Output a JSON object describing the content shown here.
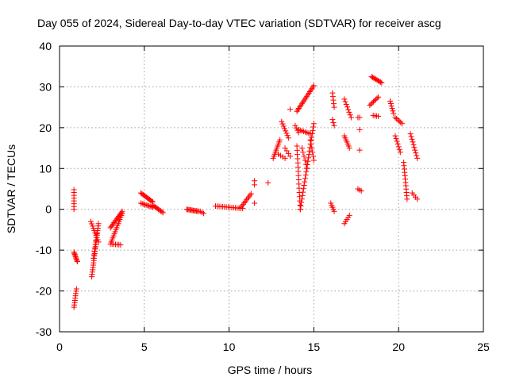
{
  "chart_data": {
    "type": "scatter",
    "title": "Day 055 of 2024, Sidereal Day-to-day VTEC variation (SDTVAR) for receiver ascg",
    "xlabel": "GPS time / hours",
    "ylabel": "SDTVAR / TECUs",
    "xlim": [
      0,
      25
    ],
    "ylim": [
      -30,
      40
    ],
    "xticks": [
      0,
      5,
      10,
      15,
      20,
      25
    ],
    "yticks": [
      -30,
      -20,
      -10,
      0,
      10,
      20,
      30,
      40
    ],
    "xtick_labels": [
      "0",
      "5",
      "10",
      "15",
      "20",
      "25"
    ],
    "ytick_labels": [
      "-30",
      "-20",
      "-10",
      "0",
      "10",
      "20",
      "30",
      "40"
    ],
    "grid": true,
    "marker": "+",
    "color": "#ff0000",
    "segments": [
      {
        "x0": 0.85,
        "y0": 4.8,
        "x1": 0.85,
        "y1": 0.0,
        "n": 8
      },
      {
        "x0": 0.85,
        "y0": -10.5,
        "x1": 1.05,
        "y1": -12.8,
        "n": 9
      },
      {
        "x0": 0.85,
        "y0": -24.0,
        "x1": 1.0,
        "y1": -19.5,
        "n": 9
      },
      {
        "x0": 1.9,
        "y0": -16.5,
        "x1": 2.3,
        "y1": -3.5,
        "n": 24
      },
      {
        "x0": 1.85,
        "y0": -3.0,
        "x1": 2.3,
        "y1": -8.0,
        "n": 10
      },
      {
        "x0": 2.0,
        "y0": -12.0,
        "x1": 2.2,
        "y1": -6.0,
        "n": 8
      },
      {
        "x0": 3.0,
        "y0": -4.5,
        "x1": 3.7,
        "y1": -0.5,
        "n": 14
      },
      {
        "x0": 3.0,
        "y0": -8.5,
        "x1": 3.7,
        "y1": -1.0,
        "n": 16
      },
      {
        "x0": 3.1,
        "y0": -8.5,
        "x1": 3.6,
        "y1": -8.7,
        "n": 6
      },
      {
        "x0": 4.8,
        "y0": 4.0,
        "x1": 5.5,
        "y1": 1.8,
        "n": 12
      },
      {
        "x0": 4.8,
        "y0": 1.5,
        "x1": 5.5,
        "y1": 0.5,
        "n": 10
      },
      {
        "x0": 5.5,
        "y0": 1.0,
        "x1": 6.1,
        "y1": -0.8,
        "n": 10
      },
      {
        "x0": 7.5,
        "y0": 0.0,
        "x1": 8.2,
        "y1": -0.5,
        "n": 12
      },
      {
        "x0": 8.3,
        "y0": -0.5,
        "x1": 8.5,
        "y1": -1.0,
        "n": 3
      },
      {
        "x0": 9.2,
        "y0": 0.8,
        "x1": 10.8,
        "y1": 0.2,
        "n": 16
      },
      {
        "x0": 10.7,
        "y0": 0.5,
        "x1": 11.3,
        "y1": 3.8,
        "n": 10
      },
      {
        "x0": 11.5,
        "y0": 6.0,
        "x1": 11.5,
        "y1": 7.0,
        "n": 2
      },
      {
        "x0": 11.5,
        "y0": 1.5,
        "x1": 11.5,
        "y1": 1.5,
        "n": 1
      },
      {
        "x0": 12.3,
        "y0": 6.5,
        "x1": 12.3,
        "y1": 6.5,
        "n": 1
      },
      {
        "x0": 12.6,
        "y0": 12.5,
        "x1": 13.0,
        "y1": 17.0,
        "n": 10
      },
      {
        "x0": 12.9,
        "y0": 13.5,
        "x1": 13.3,
        "y1": 12.5,
        "n": 4
      },
      {
        "x0": 13.1,
        "y0": 21.5,
        "x1": 13.5,
        "y1": 17.5,
        "n": 8
      },
      {
        "x0": 13.3,
        "y0": 15.0,
        "x1": 13.6,
        "y1": 13.0,
        "n": 4
      },
      {
        "x0": 13.6,
        "y0": 24.5,
        "x1": 13.6,
        "y1": 24.5,
        "n": 1
      },
      {
        "x0": 13.9,
        "y0": 20.5,
        "x1": 14.1,
        "y1": 18.8,
        "n": 4
      },
      {
        "x0": 14.0,
        "y0": 24.0,
        "x1": 15.0,
        "y1": 30.3,
        "n": 18
      },
      {
        "x0": 14.0,
        "y0": 15.5,
        "x1": 14.2,
        "y1": 0.0,
        "n": 16
      },
      {
        "x0": 14.2,
        "y0": 0.0,
        "x1": 15.0,
        "y1": 21.0,
        "n": 26
      },
      {
        "x0": 14.1,
        "y0": 19.5,
        "x1": 14.8,
        "y1": 18.5,
        "n": 8
      },
      {
        "x0": 14.3,
        "y0": 15.0,
        "x1": 14.6,
        "y1": 10.0,
        "n": 6
      },
      {
        "x0": 14.8,
        "y0": 17.0,
        "x1": 15.0,
        "y1": 12.0,
        "n": 6
      },
      {
        "x0": 16.1,
        "y0": 28.5,
        "x1": 16.2,
        "y1": 25.0,
        "n": 5
      },
      {
        "x0": 16.1,
        "y0": 22.0,
        "x1": 16.2,
        "y1": 20.5,
        "n": 3
      },
      {
        "x0": 16.0,
        "y0": 1.5,
        "x1": 16.2,
        "y1": -0.5,
        "n": 5
      },
      {
        "x0": 16.8,
        "y0": 27.0,
        "x1": 17.2,
        "y1": 22.5,
        "n": 8
      },
      {
        "x0": 16.8,
        "y0": 18.0,
        "x1": 17.1,
        "y1": 15.0,
        "n": 7
      },
      {
        "x0": 16.8,
        "y0": -3.5,
        "x1": 17.1,
        "y1": -1.5,
        "n": 5
      },
      {
        "x0": 17.6,
        "y0": 22.5,
        "x1": 17.7,
        "y1": 22.5,
        "n": 2
      },
      {
        "x0": 17.7,
        "y0": 19.5,
        "x1": 17.7,
        "y1": 19.5,
        "n": 1
      },
      {
        "x0": 17.7,
        "y0": 14.5,
        "x1": 17.7,
        "y1": 14.5,
        "n": 1
      },
      {
        "x0": 17.6,
        "y0": 5.0,
        "x1": 17.8,
        "y1": 4.5,
        "n": 3
      },
      {
        "x0": 18.4,
        "y0": 32.5,
        "x1": 19.0,
        "y1": 31.0,
        "n": 10
      },
      {
        "x0": 18.3,
        "y0": 25.5,
        "x1": 18.8,
        "y1": 27.5,
        "n": 8
      },
      {
        "x0": 18.5,
        "y0": 23.0,
        "x1": 18.8,
        "y1": 22.8,
        "n": 4
      },
      {
        "x0": 19.5,
        "y0": 26.5,
        "x1": 19.7,
        "y1": 23.5,
        "n": 6
      },
      {
        "x0": 19.8,
        "y0": 22.5,
        "x1": 20.2,
        "y1": 21.0,
        "n": 6
      },
      {
        "x0": 19.8,
        "y0": 18.0,
        "x1": 20.1,
        "y1": 14.0,
        "n": 7
      },
      {
        "x0": 20.3,
        "y0": 11.5,
        "x1": 20.5,
        "y1": 2.5,
        "n": 12
      },
      {
        "x0": 20.7,
        "y0": 18.5,
        "x1": 21.1,
        "y1": 12.5,
        "n": 10
      },
      {
        "x0": 20.8,
        "y0": 4.0,
        "x1": 21.1,
        "y1": 2.5,
        "n": 4
      }
    ]
  }
}
